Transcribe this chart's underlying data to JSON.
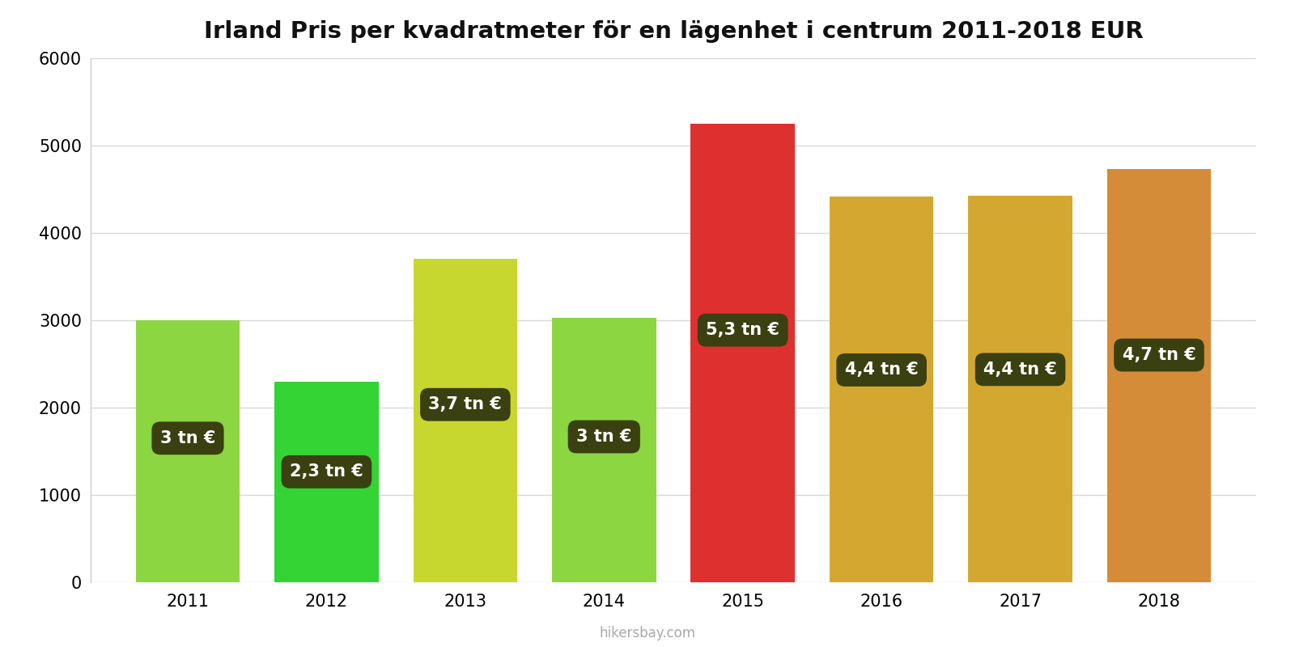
{
  "title": "Irland Pris per kvadratmeter för en lägenhet i centrum 2011-2018 EUR",
  "years": [
    2011,
    2012,
    2013,
    2014,
    2015,
    2016,
    2017,
    2018
  ],
  "values": [
    3000,
    2300,
    3700,
    3030,
    5250,
    4420,
    4430,
    4730
  ],
  "bar_colors": [
    "#8cd642",
    "#33d433",
    "#c8d630",
    "#8cd642",
    "#df3030",
    "#d4a830",
    "#d4a830",
    "#d48c38"
  ],
  "label_texts": [
    "3 tn €",
    "2,3 tn €",
    "3,7 tn €",
    "3 tn €",
    "5,3 tn €",
    "4,4 tn €",
    "4,4 tn €",
    "4,7 tn €"
  ],
  "label_box_color": "#3a4010",
  "label_text_color": "#ffffff",
  "ylim": [
    0,
    6000
  ],
  "yticks": [
    0,
    1000,
    2000,
    3000,
    4000,
    5000,
    6000
  ],
  "background_color": "#ffffff",
  "grid_color": "#d8d8d8",
  "title_fontsize": 21,
  "tick_fontsize": 15,
  "label_fontsize": 15,
  "watermark": "hikersbay.com",
  "bar_width": 0.75
}
